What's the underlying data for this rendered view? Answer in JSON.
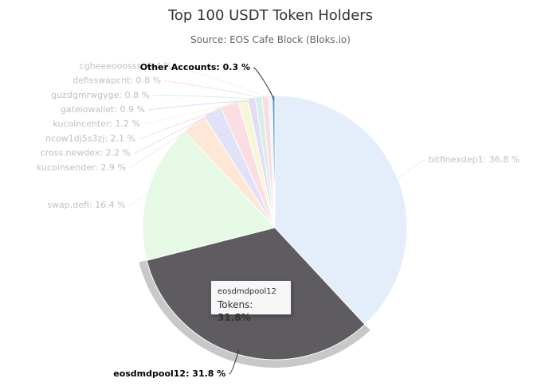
{
  "chart_data": {
    "type": "pie",
    "title": "Top 100 USDT Token Holders",
    "subtitle": "Source: EOS Cafe Block (Bloks.io)",
    "slices": [
      {
        "name": "bitfinexdep1",
        "value": 36.8,
        "color": "#e4eefa",
        "label_side": "right",
        "muted": true
      },
      {
        "name": "eosdmdpool12",
        "value": 31.8,
        "color": "#5e5b61",
        "label_side": "left",
        "muted": false,
        "selected": true
      },
      {
        "name": "swap.defi",
        "value": 16.4,
        "color": "#e6f9e4",
        "label_side": "left",
        "muted": true
      },
      {
        "name": "kucoinsender",
        "value": 2.9,
        "color": "#fde8d8",
        "label_side": "left",
        "muted": true
      },
      {
        "name": "cross.newdex",
        "value": 2.2,
        "color": "#e1e2f8",
        "label_side": "left",
        "muted": true
      },
      {
        "name": "ncow1dj5s3zj",
        "value": 2.1,
        "color": "#fcdde4",
        "label_side": "left",
        "muted": true
      },
      {
        "name": "kucoincenter",
        "value": 1.2,
        "color": "#f8f6d8",
        "label_side": "left",
        "muted": true
      },
      {
        "name": "gateiowallet",
        "value": 0.9,
        "color": "#e2dcf6",
        "label_side": "left",
        "muted": true
      },
      {
        "name": "guzdgmrwgyge",
        "value": 0.8,
        "color": "#d7ede8",
        "label_side": "left",
        "muted": true
      },
      {
        "name": "defisswapcnt",
        "value": 0.8,
        "color": "#fadede",
        "label_side": "left",
        "muted": true
      },
      {
        "name": "cgheeeooosss",
        "value": 0.4,
        "color": "#eef2fb",
        "label_side": "left",
        "muted": true
      },
      {
        "name": "Other Accounts",
        "value": 0.3,
        "color": "#5b9bd5",
        "label_side": "left",
        "muted": false
      }
    ],
    "label_suffix": " %"
  },
  "tooltip": {
    "title": "eosdmdpool12",
    "label": "Tokens:",
    "value": "31.8%"
  },
  "colors": {
    "muted_label": "#c0c0c0",
    "active_label": "#000000",
    "selected_halo": "#c8c8c8"
  }
}
